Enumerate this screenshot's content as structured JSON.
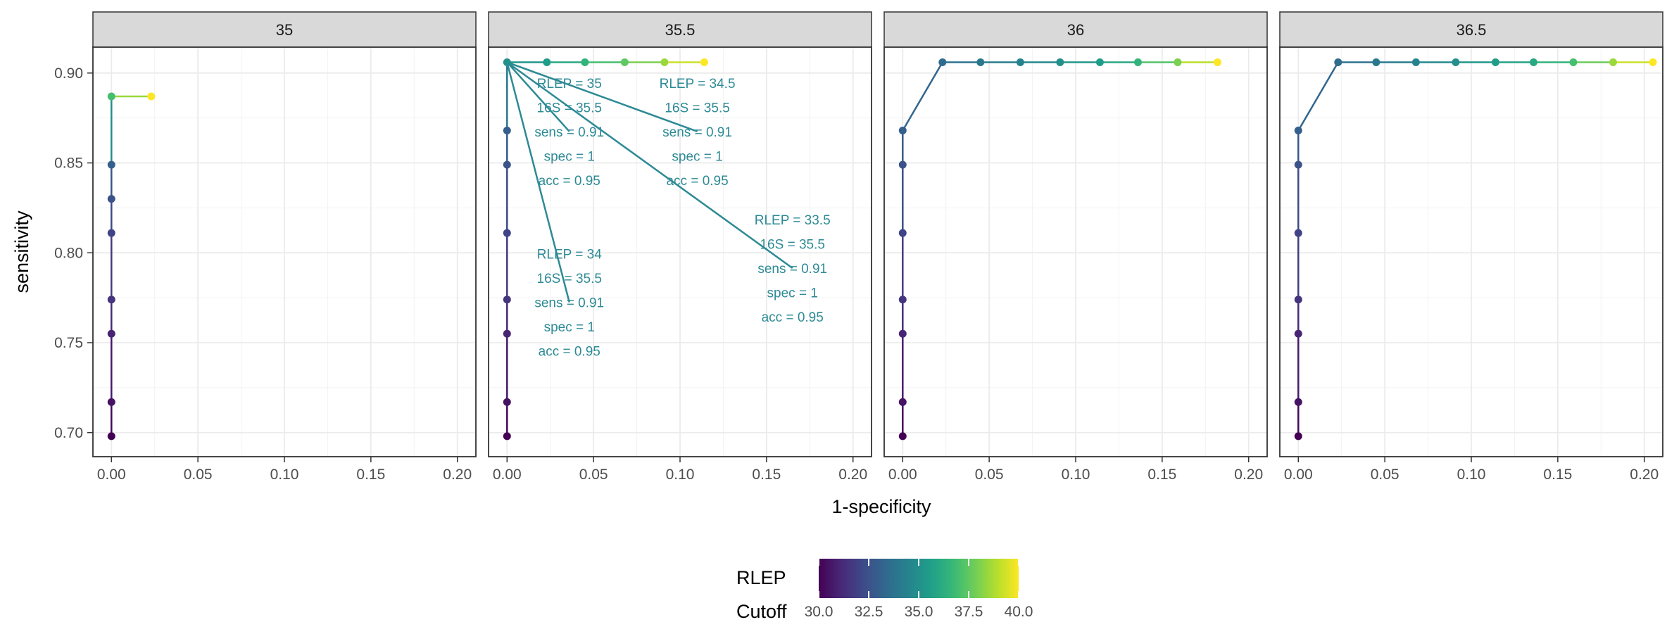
{
  "chart_data": {
    "type": "line",
    "xlabel": "1-specificity",
    "ylabel": "sensitivity",
    "xlim": [
      -0.0107,
      0.2107
    ],
    "ylim": [
      0.6866,
      0.9144
    ],
    "x_ticks": [
      0.0,
      0.05,
      0.1,
      0.15,
      0.2
    ],
    "x_tick_labels": [
      "0.00",
      "0.05",
      "0.10",
      "0.15",
      "0.20"
    ],
    "y_ticks": [
      0.7,
      0.75,
      0.8,
      0.85,
      0.9
    ],
    "y_tick_labels": [
      "0.70",
      "0.75",
      "0.80",
      "0.85",
      "0.90"
    ],
    "grid": true,
    "legend": {
      "title_lines": [
        "RLEP",
        "Cutoff"
      ],
      "type": "colorbar",
      "range": [
        30.0,
        40.0
      ],
      "ticks": [
        30.0,
        32.5,
        35.0,
        37.5,
        40.0
      ],
      "tick_labels": [
        "30.0",
        "32.5",
        "35.0",
        "37.5",
        "40.0"
      ],
      "placement": "bottom",
      "colormap": "viridis"
    },
    "panels": [
      {
        "label": "35",
        "points": [
          {
            "x": 0.0,
            "y": 0.698,
            "c": 30.0
          },
          {
            "x": 0.0,
            "y": 0.717,
            "c": 30.5
          },
          {
            "x": 0.0,
            "y": 0.755,
            "c": 31.0
          },
          {
            "x": 0.0,
            "y": 0.774,
            "c": 31.5
          },
          {
            "x": 0.0,
            "y": 0.811,
            "c": 32.0
          },
          {
            "x": 0.0,
            "y": 0.83,
            "c": 32.5
          },
          {
            "x": 0.0,
            "y": 0.849,
            "c": 33.0
          },
          {
            "x": 0.0,
            "y": 0.887,
            "c": 37.0
          },
          {
            "x": 0.023,
            "y": 0.887,
            "c": 40.0
          }
        ],
        "annotations": []
      },
      {
        "label": "35.5",
        "points": [
          {
            "x": 0.0,
            "y": 0.698,
            "c": 30.0
          },
          {
            "x": 0.0,
            "y": 0.717,
            "c": 30.5
          },
          {
            "x": 0.0,
            "y": 0.755,
            "c": 31.0
          },
          {
            "x": 0.0,
            "y": 0.774,
            "c": 31.5
          },
          {
            "x": 0.0,
            "y": 0.811,
            "c": 32.0
          },
          {
            "x": 0.0,
            "y": 0.849,
            "c": 32.5
          },
          {
            "x": 0.0,
            "y": 0.868,
            "c": 33.0
          },
          {
            "x": 0.0,
            "y": 0.906,
            "c": 35.0
          },
          {
            "x": 0.023,
            "y": 0.906,
            "c": 35.5
          },
          {
            "x": 0.045,
            "y": 0.906,
            "c": 36.5
          },
          {
            "x": 0.068,
            "y": 0.906,
            "c": 37.5
          },
          {
            "x": 0.091,
            "y": 0.906,
            "c": 38.5
          },
          {
            "x": 0.114,
            "y": 0.906,
            "c": 40.0
          }
        ],
        "annotations": [
          {
            "lines": [
              "RLEP = 35",
              "16S = 35.5",
              "sens = 0.91",
              "spec = 1",
              "acc = 0.95"
            ],
            "cx": 0.036,
            "cy": 0.8675
          },
          {
            "lines": [
              "RLEP = 34.5",
              "16S = 35.5",
              "sens = 0.91",
              "spec = 1",
              "acc = 0.95"
            ],
            "cx": 0.11,
            "cy": 0.8675
          },
          {
            "lines": [
              "RLEP = 34",
              "16S = 35.5",
              "sens = 0.91",
              "spec = 1",
              "acc = 0.95"
            ],
            "cx": 0.036,
            "cy": 0.7725
          },
          {
            "lines": [
              "RLEP = 33.5",
              "16S = 35.5",
              "sens = 0.91",
              "spec = 1",
              "acc = 0.95"
            ],
            "cx": 0.165,
            "cy": 0.7915
          }
        ],
        "annotation_color": "#2d8a95"
      },
      {
        "label": "36",
        "points": [
          {
            "x": 0.0,
            "y": 0.698,
            "c": 30.0
          },
          {
            "x": 0.0,
            "y": 0.717,
            "c": 30.5
          },
          {
            "x": 0.0,
            "y": 0.755,
            "c": 31.0
          },
          {
            "x": 0.0,
            "y": 0.774,
            "c": 31.5
          },
          {
            "x": 0.0,
            "y": 0.811,
            "c": 32.0
          },
          {
            "x": 0.0,
            "y": 0.849,
            "c": 32.5
          },
          {
            "x": 0.0,
            "y": 0.868,
            "c": 33.0
          },
          {
            "x": 0.023,
            "y": 0.906,
            "c": 33.5
          },
          {
            "x": 0.045,
            "y": 0.906,
            "c": 34.0
          },
          {
            "x": 0.068,
            "y": 0.906,
            "c": 34.5
          },
          {
            "x": 0.091,
            "y": 0.906,
            "c": 35.0
          },
          {
            "x": 0.114,
            "y": 0.906,
            "c": 35.5
          },
          {
            "x": 0.136,
            "y": 0.906,
            "c": 36.5
          },
          {
            "x": 0.159,
            "y": 0.906,
            "c": 38.0
          },
          {
            "x": 0.182,
            "y": 0.906,
            "c": 40.0
          }
        ],
        "annotations": []
      },
      {
        "label": "36.5",
        "points": [
          {
            "x": 0.0,
            "y": 0.698,
            "c": 30.0
          },
          {
            "x": 0.0,
            "y": 0.717,
            "c": 30.5
          },
          {
            "x": 0.0,
            "y": 0.755,
            "c": 31.0
          },
          {
            "x": 0.0,
            "y": 0.774,
            "c": 31.5
          },
          {
            "x": 0.0,
            "y": 0.811,
            "c": 32.0
          },
          {
            "x": 0.0,
            "y": 0.849,
            "c": 32.5
          },
          {
            "x": 0.0,
            "y": 0.868,
            "c": 33.0
          },
          {
            "x": 0.023,
            "y": 0.906,
            "c": 33.5
          },
          {
            "x": 0.045,
            "y": 0.906,
            "c": 34.0
          },
          {
            "x": 0.068,
            "y": 0.906,
            "c": 34.5
          },
          {
            "x": 0.091,
            "y": 0.906,
            "c": 35.0
          },
          {
            "x": 0.114,
            "y": 0.906,
            "c": 35.5
          },
          {
            "x": 0.136,
            "y": 0.906,
            "c": 36.0
          },
          {
            "x": 0.159,
            "y": 0.906,
            "c": 37.0
          },
          {
            "x": 0.182,
            "y": 0.906,
            "c": 38.5
          },
          {
            "x": 0.205,
            "y": 0.906,
            "c": 40.0
          }
        ],
        "annotations": []
      }
    ]
  }
}
